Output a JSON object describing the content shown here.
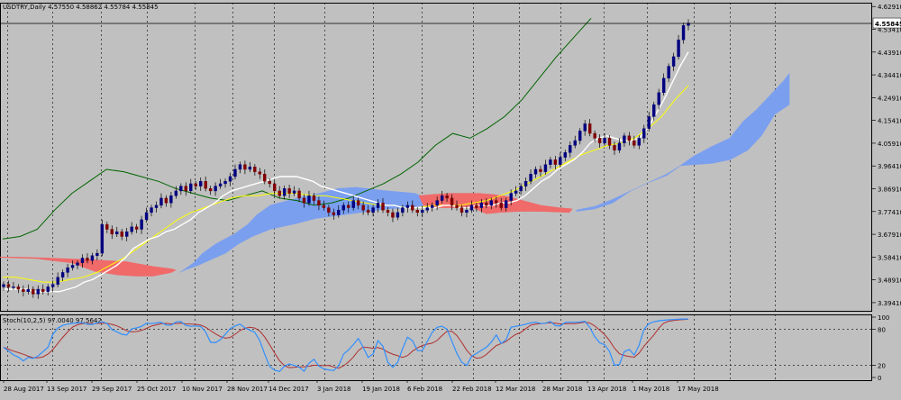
{
  "colors": {
    "background": "#c0c0c0",
    "grid": "#000000",
    "candle_up": "#000080",
    "candle_down": "#800000",
    "tenkan": "#ffffff",
    "kijun": "#ffff00",
    "chikou": "#006400",
    "cloud_bull": "#7b9fef",
    "cloud_bear": "#f06a6a",
    "stoch_main": "#2f8fff",
    "stoch_signal": "#b03030",
    "price_tag_bg": "#ffffff"
  },
  "price_panel": {
    "header": "USDTRY,Daily  4.57550 4.58862 4.55784 4.55845",
    "price_axis_labels": [
      "4.62910",
      "4.53410",
      "4.43910",
      "4.34410",
      "4.24910",
      "4.15410",
      "4.05910",
      "3.96410",
      "3.86910",
      "3.77410",
      "3.67910",
      "3.58410",
      "3.48910",
      "3.39410"
    ],
    "current_price_label": "4.55845"
  },
  "stoch_panel": {
    "header": "Stoch(10,2,5) 97.0040 97.5642",
    "levels": [
      "100",
      "80",
      "20",
      "0"
    ]
  },
  "time_axis_labels": [
    "28 Aug 2017",
    "13 Sep 2017",
    "29 Sep 2017",
    "25 Oct 2017",
    "10 Nov 2017",
    "28 Nov 2017",
    "14 Dec 2017",
    "3 Jan 2018",
    "19 Jan 2018",
    "6 Feb 2018",
    "22 Feb 2018",
    "12 Mar 2018",
    "28 Mar 2018",
    "13 Apr 2018",
    "1 May 2018",
    "17 May 2018"
  ],
  "chart_data": {
    "type": "candlestick",
    "instrument": "USDTRY",
    "timeframe": "Daily",
    "ohlc_current": {
      "open": 4.5755,
      "high": 4.58862,
      "low": 4.55784,
      "close": 4.55845
    },
    "ylim": [
      3.36,
      4.645
    ],
    "close_series": [
      3.47,
      3.46,
      3.46,
      3.45,
      3.44,
      3.45,
      3.43,
      3.45,
      3.44,
      3.46,
      3.47,
      3.5,
      3.52,
      3.54,
      3.55,
      3.56,
      3.58,
      3.57,
      3.59,
      3.6,
      3.72,
      3.7,
      3.68,
      3.69,
      3.67,
      3.69,
      3.71,
      3.7,
      3.74,
      3.77,
      3.79,
      3.8,
      3.83,
      3.81,
      3.84,
      3.86,
      3.88,
      3.86,
      3.89,
      3.88,
      3.9,
      3.87,
      3.86,
      3.88,
      3.89,
      3.9,
      3.92,
      3.95,
      3.97,
      3.95,
      3.96,
      3.94,
      3.93,
      3.9,
      3.89,
      3.86,
      3.84,
      3.87,
      3.85,
      3.86,
      3.83,
      3.81,
      3.84,
      3.82,
      3.8,
      3.79,
      3.77,
      3.76,
      3.78,
      3.8,
      3.79,
      3.82,
      3.8,
      3.78,
      3.77,
      3.79,
      3.81,
      3.78,
      3.77,
      3.75,
      3.77,
      3.79,
      3.8,
      3.78,
      3.77,
      3.78,
      3.79,
      3.8,
      3.82,
      3.84,
      3.83,
      3.8,
      3.79,
      3.77,
      3.78,
      3.8,
      3.79,
      3.81,
      3.8,
      3.82,
      3.81,
      3.79,
      3.82,
      3.85,
      3.86,
      3.88,
      3.9,
      3.93,
      3.95,
      3.94,
      3.97,
      3.99,
      3.97,
      4.0,
      4.02,
      4.05,
      4.07,
      4.11,
      4.14,
      4.1,
      4.08,
      4.06,
      4.08,
      4.05,
      4.03,
      4.06,
      4.09,
      4.07,
      4.05,
      4.08,
      4.12,
      4.17,
      4.22,
      4.27,
      4.33,
      4.38,
      4.42,
      4.49,
      4.55,
      4.56
    ],
    "tenkan_series": [
      3.45,
      3.45,
      3.45,
      3.45,
      3.44,
      3.44,
      3.44,
      3.44,
      3.45,
      3.46,
      3.48,
      3.49,
      3.51,
      3.53,
      3.55,
      3.58,
      3.62,
      3.64,
      3.66,
      3.67,
      3.69,
      3.7,
      3.72,
      3.74,
      3.77,
      3.79,
      3.81,
      3.84,
      3.86,
      3.87,
      3.88,
      3.89,
      3.9,
      3.91,
      3.92,
      3.92,
      3.92,
      3.91,
      3.9,
      3.88,
      3.87,
      3.86,
      3.85,
      3.84,
      3.83,
      3.82,
      3.81,
      3.8,
      3.8,
      3.79,
      3.79,
      3.79,
      3.79,
      3.79,
      3.8,
      3.8,
      3.79,
      3.79,
      3.8,
      3.8,
      3.8,
      3.81,
      3.81,
      3.82,
      3.84,
      3.87,
      3.9,
      3.92,
      3.95,
      3.97,
      3.99,
      4.02,
      4.06,
      4.08,
      4.09,
      4.08,
      4.07,
      4.07,
      4.08,
      4.12,
      4.18,
      4.24,
      4.31,
      4.38,
      4.44
    ],
    "kijun_series": [
      3.5,
      3.5,
      3.49,
      3.48,
      3.48,
      3.49,
      3.5,
      3.52,
      3.55,
      3.58,
      3.62,
      3.66,
      3.7,
      3.74,
      3.77,
      3.79,
      3.81,
      3.83,
      3.84,
      3.84,
      3.85,
      3.85,
      3.85,
      3.84,
      3.84,
      3.83,
      3.82,
      3.81,
      3.8,
      3.8,
      3.79,
      3.79,
      3.8,
      3.8,
      3.8,
      3.81,
      3.82,
      3.84,
      3.86,
      3.89,
      3.92,
      3.95,
      3.98,
      4.01,
      4.03,
      4.05,
      4.06,
      4.08,
      4.12,
      4.17,
      4.24,
      4.3
    ],
    "chikou_series": [
      3.66,
      3.67,
      3.7,
      3.78,
      3.85,
      3.9,
      3.95,
      3.94,
      3.92,
      3.9,
      3.87,
      3.85,
      3.83,
      3.82,
      3.84,
      3.86,
      3.83,
      3.82,
      3.8,
      3.81,
      3.83,
      3.86,
      3.89,
      3.93,
      3.98,
      4.05,
      4.1,
      4.08,
      4.12,
      4.17,
      4.24,
      4.33,
      4.42,
      4.5,
      4.58
    ]
  }
}
